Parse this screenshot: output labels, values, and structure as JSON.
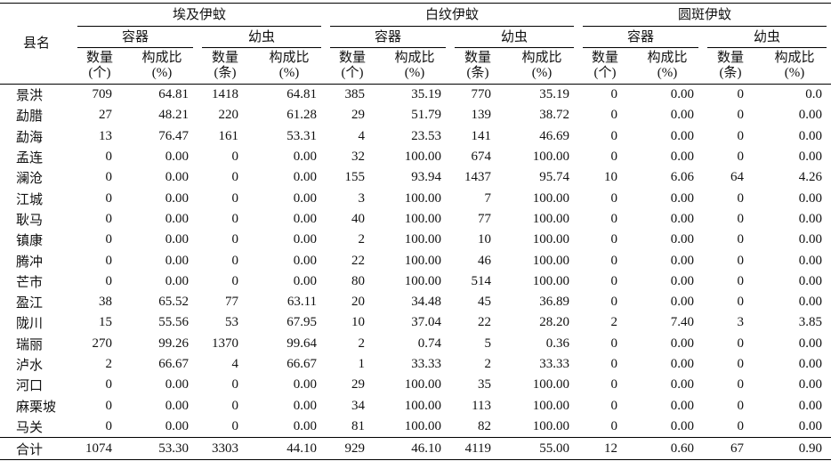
{
  "header": {
    "county": "县名",
    "groups": [
      {
        "name": "埃及伊蚊",
        "subgroups": [
          {
            "name": "容器",
            "columns": [
              {
                "label": "数量",
                "unit": "(个)"
              },
              {
                "label": "构成比",
                "unit": "(%)"
              }
            ]
          },
          {
            "name": "幼虫",
            "columns": [
              {
                "label": "数量",
                "unit": "(条)"
              },
              {
                "label": "构成比",
                "unit": "(%)"
              }
            ]
          }
        ]
      },
      {
        "name": "白纹伊蚊",
        "subgroups": [
          {
            "name": "容器",
            "columns": [
              {
                "label": "数量",
                "unit": "(个)"
              },
              {
                "label": "构成比",
                "unit": "(%)"
              }
            ]
          },
          {
            "name": "幼虫",
            "columns": [
              {
                "label": "数量",
                "unit": "(条)"
              },
              {
                "label": "构成比",
                "unit": "(%)"
              }
            ]
          }
        ]
      },
      {
        "name": "圆斑伊蚊",
        "subgroups": [
          {
            "name": "容器",
            "columns": [
              {
                "label": "数量",
                "unit": "(个)"
              },
              {
                "label": "构成比",
                "unit": "(%)"
              }
            ]
          },
          {
            "name": "幼虫",
            "columns": [
              {
                "label": "数量",
                "unit": "(条)"
              },
              {
                "label": "构成比",
                "unit": "(%)"
              }
            ]
          }
        ]
      }
    ]
  },
  "rows": [
    [
      "景洪",
      "709",
      "64.81",
      "1418",
      "64.81",
      "385",
      "35.19",
      "770",
      "35.19",
      "0",
      "0.00",
      "0",
      "0.0"
    ],
    [
      "勐腊",
      "27",
      "48.21",
      "220",
      "61.28",
      "29",
      "51.79",
      "139",
      "38.72",
      "0",
      "0.00",
      "0",
      "0.00"
    ],
    [
      "勐海",
      "13",
      "76.47",
      "161",
      "53.31",
      "4",
      "23.53",
      "141",
      "46.69",
      "0",
      "0.00",
      "0",
      "0.00"
    ],
    [
      "孟连",
      "0",
      "0.00",
      "0",
      "0.00",
      "32",
      "100.00",
      "674",
      "100.00",
      "0",
      "0.00",
      "0",
      "0.00"
    ],
    [
      "澜沧",
      "0",
      "0.00",
      "0",
      "0.00",
      "155",
      "93.94",
      "1437",
      "95.74",
      "10",
      "6.06",
      "64",
      "4.26"
    ],
    [
      "江城",
      "0",
      "0.00",
      "0",
      "0.00",
      "3",
      "100.00",
      "7",
      "100.00",
      "0",
      "0.00",
      "0",
      "0.00"
    ],
    [
      "耿马",
      "0",
      "0.00",
      "0",
      "0.00",
      "40",
      "100.00",
      "77",
      "100.00",
      "0",
      "0.00",
      "0",
      "0.00"
    ],
    [
      "镇康",
      "0",
      "0.00",
      "0",
      "0.00",
      "2",
      "100.00",
      "10",
      "100.00",
      "0",
      "0.00",
      "0",
      "0.00"
    ],
    [
      "腾冲",
      "0",
      "0.00",
      "0",
      "0.00",
      "22",
      "100.00",
      "46",
      "100.00",
      "0",
      "0.00",
      "0",
      "0.00"
    ],
    [
      "芒市",
      "0",
      "0.00",
      "0",
      "0.00",
      "80",
      "100.00",
      "514",
      "100.00",
      "0",
      "0.00",
      "0",
      "0.00"
    ],
    [
      "盈江",
      "38",
      "65.52",
      "77",
      "63.11",
      "20",
      "34.48",
      "45",
      "36.89",
      "0",
      "0.00",
      "0",
      "0.00"
    ],
    [
      "陇川",
      "15",
      "55.56",
      "53",
      "67.95",
      "10",
      "37.04",
      "22",
      "28.20",
      "2",
      "7.40",
      "3",
      "3.85"
    ],
    [
      "瑞丽",
      "270",
      "99.26",
      "1370",
      "99.64",
      "2",
      "0.74",
      "5",
      "0.36",
      "0",
      "0.00",
      "0",
      "0.00"
    ],
    [
      "泸水",
      "2",
      "66.67",
      "4",
      "66.67",
      "1",
      "33.33",
      "2",
      "33.33",
      "0",
      "0.00",
      "0",
      "0.00"
    ],
    [
      "河口",
      "0",
      "0.00",
      "0",
      "0.00",
      "29",
      "100.00",
      "35",
      "100.00",
      "0",
      "0.00",
      "0",
      "0.00"
    ],
    [
      "麻栗坡",
      "0",
      "0.00",
      "0",
      "0.00",
      "34",
      "100.00",
      "113",
      "100.00",
      "0",
      "0.00",
      "0",
      "0.00"
    ],
    [
      "马关",
      "0",
      "0.00",
      "0",
      "0.00",
      "81",
      "100.00",
      "82",
      "100.00",
      "0",
      "0.00",
      "0",
      "0.00"
    ]
  ],
  "total": [
    "合计",
    "1074",
    "53.30",
    "3303",
    "44.10",
    "929",
    "46.10",
    "4119",
    "55.00",
    "12",
    "0.60",
    "67",
    "0.90"
  ]
}
